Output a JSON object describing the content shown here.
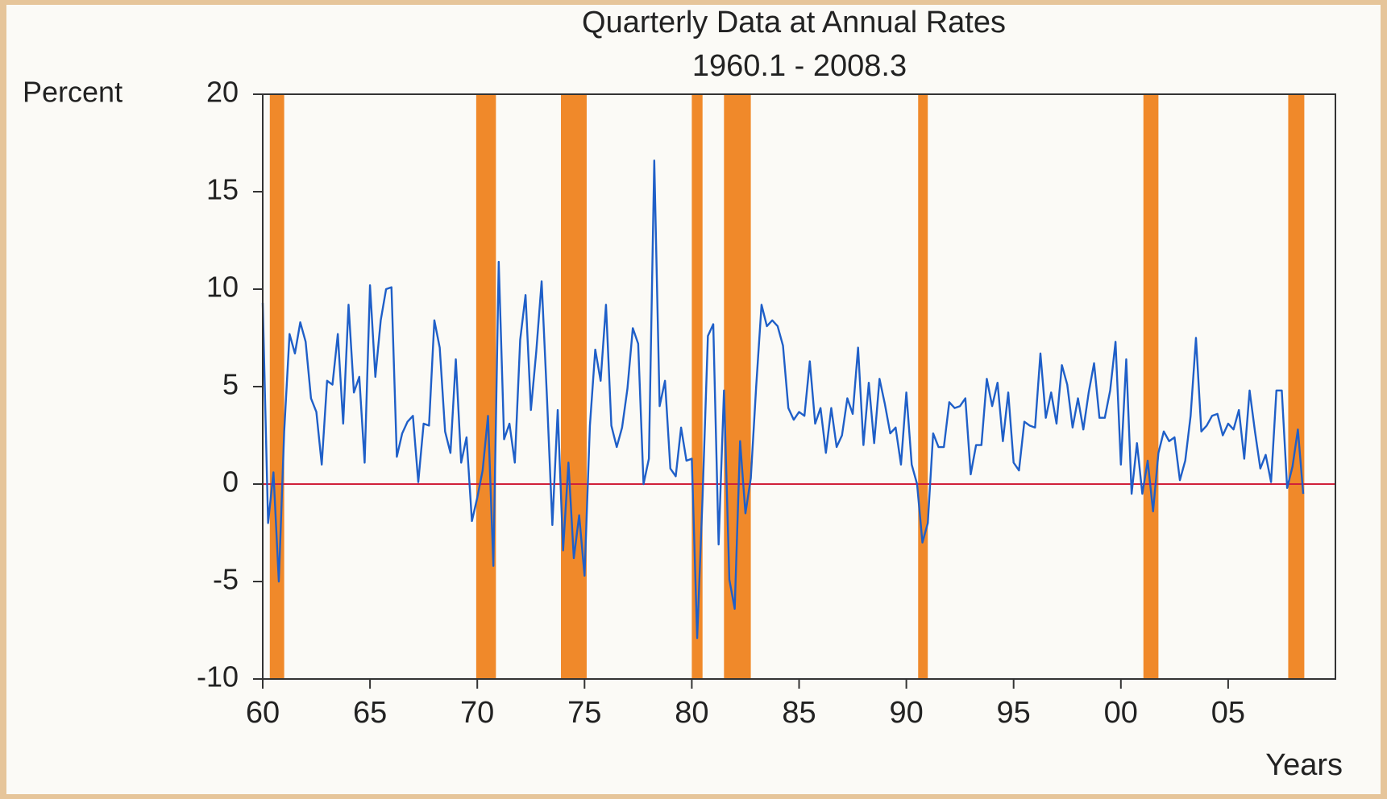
{
  "chart_data": {
    "type": "line",
    "title": "Quarterly Data at Annual Rates",
    "subtitle": "1960.1 - 2008.3",
    "y_label": "Percent",
    "x_label": "Years",
    "color": "#1f5fc8",
    "recession_color": "#f0892a",
    "zero_line_color": "#d0203a",
    "xlim": [
      1960,
      2010
    ],
    "ylim": [
      -10,
      20
    ],
    "xticks": [
      {
        "value": 1960,
        "label": "60"
      },
      {
        "value": 1965,
        "label": "65"
      },
      {
        "value": 1970,
        "label": "70"
      },
      {
        "value": 1975,
        "label": "75"
      },
      {
        "value": 1980,
        "label": "80"
      },
      {
        "value": 1985,
        "label": "85"
      },
      {
        "value": 1990,
        "label": "90"
      },
      {
        "value": 1995,
        "label": "95"
      },
      {
        "value": 2000,
        "label": "00"
      },
      {
        "value": 2005,
        "label": "05"
      }
    ],
    "yticks": [
      -10,
      -5,
      0,
      5,
      10,
      15,
      20
    ],
    "recessions": [
      [
        1960.33,
        1961.0
      ],
      [
        1969.95,
        1970.87
      ],
      [
        1973.9,
        1975.1
      ],
      [
        1980.0,
        1980.5
      ],
      [
        1981.5,
        1982.75
      ],
      [
        1990.55,
        1991.0
      ],
      [
        2001.05,
        2001.75
      ],
      [
        2007.8,
        2008.55
      ]
    ],
    "x": [
      1960,
      1960.25,
      1960.5,
      1960.75,
      1961,
      1961.25,
      1961.5,
      1961.75,
      1962,
      1962.25,
      1962.5,
      1962.75,
      1963,
      1963.25,
      1963.5,
      1963.75,
      1964,
      1964.25,
      1964.5,
      1964.75,
      1965,
      1965.25,
      1965.5,
      1965.75,
      1966,
      1966.25,
      1966.5,
      1966.75,
      1967,
      1967.25,
      1967.5,
      1967.75,
      1968,
      1968.25,
      1968.5,
      1968.75,
      1969,
      1969.25,
      1969.5,
      1969.75,
      1970,
      1970.25,
      1970.5,
      1970.75,
      1971,
      1971.25,
      1971.5,
      1971.75,
      1972,
      1972.25,
      1972.5,
      1972.75,
      1973,
      1973.25,
      1973.5,
      1973.75,
      1974,
      1974.25,
      1974.5,
      1974.75,
      1975,
      1975.25,
      1975.5,
      1975.75,
      1976,
      1976.25,
      1976.5,
      1976.75,
      1977,
      1977.25,
      1977.5,
      1977.75,
      1978,
      1978.25,
      1978.5,
      1978.75,
      1979,
      1979.25,
      1979.5,
      1979.75,
      1980,
      1980.25,
      1980.5,
      1980.75,
      1981,
      1981.25,
      1981.5,
      1981.75,
      1982,
      1982.25,
      1982.5,
      1982.75,
      1983,
      1983.25,
      1983.5,
      1983.75,
      1984,
      1984.25,
      1984.5,
      1984.75,
      1985,
      1985.25,
      1985.5,
      1985.75,
      1986,
      1986.25,
      1986.5,
      1986.75,
      1987,
      1987.25,
      1987.5,
      1987.75,
      1988,
      1988.25,
      1988.5,
      1988.75,
      1989,
      1989.25,
      1989.5,
      1989.75,
      1990,
      1990.25,
      1990.5,
      1990.75,
      1991,
      1991.25,
      1991.5,
      1991.75,
      1992,
      1992.25,
      1992.5,
      1992.75,
      1993,
      1993.25,
      1993.5,
      1993.75,
      1994,
      1994.25,
      1994.5,
      1994.75,
      1995,
      1995.25,
      1995.5,
      1995.75,
      1996,
      1996.25,
      1996.5,
      1996.75,
      1997,
      1997.25,
      1997.5,
      1997.75,
      1998,
      1998.25,
      1998.5,
      1998.75,
      1999,
      1999.25,
      1999.5,
      1999.75,
      2000,
      2000.25,
      2000.5,
      2000.75,
      2001,
      2001.25,
      2001.5,
      2001.75,
      2002,
      2002.25,
      2002.5,
      2002.75,
      2003,
      2003.25,
      2003.5,
      2003.75,
      2004,
      2004.25,
      2004.5,
      2004.75,
      2005,
      2005.25,
      2005.5,
      2005.75,
      2006,
      2006.25,
      2006.5,
      2006.75,
      2007,
      2007.25,
      2007.5,
      2007.75,
      2008,
      2008.25,
      2008.5
    ],
    "values": [
      9.3,
      -2.0,
      0.6,
      -5.0,
      2.7,
      7.7,
      6.7,
      8.3,
      7.3,
      4.4,
      3.7,
      1.0,
      5.3,
      5.1,
      7.7,
      3.1,
      9.2,
      4.7,
      5.5,
      1.1,
      10.2,
      5.5,
      8.4,
      10.0,
      10.1,
      1.4,
      2.6,
      3.2,
      3.5,
      0.1,
      3.1,
      3.0,
      8.4,
      7.0,
      2.7,
      1.6,
      6.4,
      1.1,
      2.4,
      -1.9,
      -0.7,
      0.7,
      3.5,
      -4.2,
      11.4,
      2.3,
      3.1,
      1.1,
      7.4,
      9.7,
      3.8,
      6.8,
      10.4,
      4.4,
      -2.1,
      3.8,
      -3.4,
      1.1,
      -3.8,
      -1.6,
      -4.7,
      3.0,
      6.9,
      5.3,
      9.2,
      3.0,
      1.9,
      2.9,
      4.9,
      8.0,
      7.2,
      0.0,
      1.3,
      16.6,
      4.0,
      5.3,
      0.8,
      0.4,
      2.9,
      1.2,
      1.3,
      -7.9,
      -0.7,
      7.6,
      8.2,
      -3.1,
      4.8,
      -4.9,
      -6.4,
      2.2,
      -1.5,
      0.3,
      5.0,
      9.2,
      8.1,
      8.4,
      8.1,
      7.1,
      3.9,
      3.3,
      3.7,
      3.5,
      6.3,
      3.1,
      3.9,
      1.6,
      3.9,
      1.9,
      2.5,
      4.4,
      3.6,
      7.0,
      2.0,
      5.2,
      2.1,
      5.4,
      4.1,
      2.6,
      2.9,
      1.0,
      4.7,
      1.0,
      0.0,
      -3.0,
      -2.0,
      2.6,
      1.9,
      1.9,
      4.2,
      3.9,
      4.0,
      4.4,
      0.5,
      2.0,
      2.0,
      5.4,
      4.0,
      5.2,
      2.2,
      4.7,
      1.1,
      0.7,
      3.2,
      3.0,
      2.9,
      6.7,
      3.4,
      4.7,
      3.1,
      6.1,
      5.1,
      2.9,
      4.4,
      2.8,
      4.7,
      6.2,
      3.4,
      3.4,
      4.8,
      7.3,
      1.0,
      6.4,
      -0.5,
      2.1,
      -0.5,
      1.2,
      -1.4,
      1.6,
      2.7,
      2.2,
      2.4,
      0.2,
      1.2,
      3.5,
      7.5,
      2.7,
      3.0,
      3.5,
      3.6,
      2.5,
      3.1,
      2.8,
      3.8,
      1.3,
      4.8,
      2.7,
      0.8,
      1.5,
      0.1,
      4.8,
      4.8,
      -0.2,
      0.9,
      2.8,
      -0.5
    ],
    "zero_line": 0
  }
}
